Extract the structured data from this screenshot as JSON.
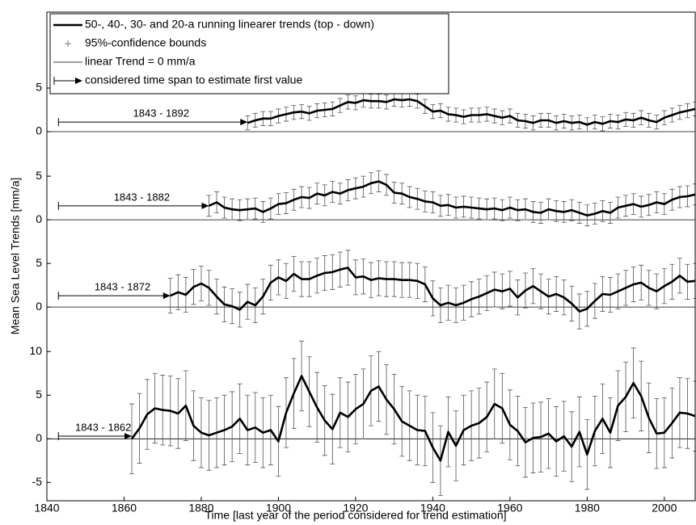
{
  "chart_data": [
    {
      "type": "line",
      "ylabel": "Mean Sea Level Trends [mm/a]",
      "legend": [
        "50-, 40-, 30- and 20-a running linearer trends (top - down)",
        "95%-confidence bounds",
        "linear Trend = 0 mm/a",
        "considered time span to estimate first value"
      ],
      "annotation": "1843 - 1892",
      "span_x": [
        1843,
        1892
      ],
      "span_y": 1.1,
      "color": "#000000",
      "error_color": "#555555",
      "error": 0.8,
      "ylim": [
        -2.5,
        13.7
      ],
      "yticks": [
        0,
        5
      ],
      "x": [
        1892,
        1894,
        1896,
        1898,
        1900,
        1902,
        1904,
        1906,
        1908,
        1910,
        1912,
        1914,
        1916,
        1918,
        1920,
        1922,
        1924,
        1926,
        1928,
        1930,
        1932,
        1934,
        1936,
        1938,
        1940,
        1942,
        1944,
        1946,
        1948,
        1950,
        1952,
        1954,
        1956,
        1958,
        1960,
        1962,
        1964,
        1966,
        1968,
        1970,
        1972,
        1974,
        1976,
        1978,
        1980,
        1982,
        1984,
        1986,
        1988,
        1990,
        1992,
        1994,
        1996,
        1998,
        2000,
        2002,
        2004,
        2006,
        2008
      ],
      "values": [
        1.0,
        1.3,
        1.5,
        1.5,
        1.8,
        2.0,
        2.2,
        2.3,
        2.1,
        2.4,
        2.5,
        2.6,
        3.0,
        3.4,
        3.3,
        3.6,
        3.5,
        3.5,
        3.4,
        3.7,
        3.6,
        3.7,
        3.5,
        2.9,
        2.3,
        2.4,
        2.0,
        1.9,
        1.7,
        1.9,
        1.9,
        2.0,
        1.8,
        1.6,
        1.8,
        1.3,
        1.2,
        1.0,
        1.3,
        1.3,
        1.0,
        1.2,
        1.0,
        1.1,
        0.8,
        1.1,
        0.9,
        1.2,
        1.1,
        1.4,
        1.3,
        1.6,
        1.3,
        1.1,
        1.6,
        1.9,
        2.2,
        2.4,
        2.6
      ]
    },
    {
      "type": "line",
      "annotation": "1843 - 1882",
      "span_x": [
        1843,
        1882
      ],
      "span_y": 1.6,
      "color": "#000000",
      "error_color": "#555555",
      "error": 1.2,
      "ylim": [
        -2.4,
        7.6
      ],
      "yticks": [
        0,
        5
      ],
      "x": [
        1882,
        1884,
        1886,
        1888,
        1890,
        1892,
        1894,
        1896,
        1898,
        1900,
        1902,
        1904,
        1906,
        1908,
        1910,
        1912,
        1914,
        1916,
        1918,
        1920,
        1922,
        1924,
        1926,
        1928,
        1930,
        1932,
        1934,
        1936,
        1938,
        1940,
        1942,
        1944,
        1946,
        1948,
        1950,
        1952,
        1954,
        1956,
        1958,
        1960,
        1962,
        1964,
        1966,
        1968,
        1970,
        1972,
        1974,
        1976,
        1978,
        1980,
        1982,
        1984,
        1986,
        1988,
        1990,
        1992,
        1994,
        1996,
        1998,
        2000,
        2002,
        2004,
        2006,
        2008
      ],
      "values": [
        1.6,
        2.0,
        1.4,
        1.2,
        1.1,
        1.2,
        1.3,
        0.9,
        1.3,
        1.8,
        1.9,
        2.3,
        2.6,
        2.5,
        3.0,
        2.8,
        3.2,
        3.0,
        3.4,
        3.6,
        3.8,
        4.2,
        4.4,
        4.0,
        3.1,
        3.0,
        2.6,
        2.4,
        2.1,
        2.0,
        1.6,
        1.7,
        1.4,
        1.5,
        1.4,
        1.3,
        1.2,
        1.3,
        1.1,
        1.4,
        1.1,
        1.2,
        0.9,
        0.8,
        1.2,
        1.0,
        0.9,
        1.1,
        0.8,
        0.5,
        0.7,
        1.0,
        0.8,
        1.4,
        1.6,
        1.8,
        1.5,
        1.7,
        2.0,
        1.8,
        2.3,
        2.6,
        2.7,
        2.9
      ]
    },
    {
      "type": "line",
      "annotation": "1843 - 1872",
      "span_x": [
        1843,
        1872
      ],
      "span_y": 1.3,
      "color": "#000000",
      "error_color": "#555555",
      "error": 2.0,
      "ylim": [
        -2.4,
        7.6
      ],
      "yticks": [
        0,
        5
      ],
      "x": [
        1872,
        1874,
        1876,
        1878,
        1880,
        1882,
        1884,
        1886,
        1888,
        1890,
        1892,
        1894,
        1896,
        1898,
        1900,
        1902,
        1904,
        1906,
        1908,
        1910,
        1912,
        1914,
        1916,
        1918,
        1920,
        1922,
        1924,
        1926,
        1928,
        1930,
        1932,
        1934,
        1936,
        1938,
        1940,
        1942,
        1944,
        1946,
        1948,
        1950,
        1952,
        1954,
        1956,
        1958,
        1960,
        1962,
        1964,
        1966,
        1968,
        1970,
        1972,
        1974,
        1976,
        1978,
        1980,
        1982,
        1984,
        1986,
        1988,
        1990,
        1992,
        1994,
        1996,
        1998,
        2000,
        2002,
        2004,
        2006,
        2008
      ],
      "values": [
        1.3,
        1.7,
        1.4,
        2.3,
        2.7,
        2.2,
        1.2,
        0.3,
        0.1,
        -0.3,
        0.6,
        0.2,
        1.2,
        2.8,
        3.4,
        3.0,
        3.8,
        3.2,
        3.2,
        3.6,
        3.9,
        4.0,
        4.3,
        4.5,
        3.4,
        3.5,
        3.1,
        3.3,
        3.2,
        3.2,
        3.1,
        3.1,
        3.0,
        2.6,
        1.0,
        0.2,
        0.5,
        0.2,
        0.5,
        0.9,
        1.2,
        1.6,
        2.0,
        1.8,
        2.1,
        1.1,
        1.9,
        2.4,
        1.8,
        1.2,
        1.5,
        1.1,
        0.4,
        -0.5,
        -0.2,
        0.7,
        1.5,
        1.4,
        1.8,
        2.2,
        2.6,
        2.8,
        2.2,
        1.8,
        2.4,
        2.9,
        3.6,
        2.9,
        3.0
      ]
    },
    {
      "type": "line",
      "annotation": "1843 - 1862",
      "span_x": [
        1843,
        1862
      ],
      "span_y": 0.3,
      "color": "#000000",
      "error_color": "#555555",
      "error": 4.0,
      "ylim": [
        -7.1,
        12.7
      ],
      "yticks": [
        -5,
        0,
        5,
        10
      ],
      "xlabel": "Time [last year of the period considered for trend estimation]",
      "xlim": [
        1840,
        2008
      ],
      "xticks": [
        1840,
        1860,
        1880,
        1900,
        1920,
        1940,
        1960,
        1980,
        2000
      ],
      "x": [
        1862,
        1864,
        1866,
        1868,
        1870,
        1872,
        1874,
        1876,
        1878,
        1880,
        1882,
        1884,
        1886,
        1888,
        1890,
        1892,
        1894,
        1896,
        1898,
        1900,
        1902,
        1904,
        1906,
        1908,
        1910,
        1912,
        1914,
        1916,
        1918,
        1920,
        1922,
        1924,
        1926,
        1928,
        1930,
        1932,
        1934,
        1936,
        1938,
        1940,
        1942,
        1944,
        1946,
        1948,
        1950,
        1952,
        1954,
        1956,
        1958,
        1960,
        1962,
        1964,
        1966,
        1968,
        1970,
        1972,
        1974,
        1976,
        1978,
        1980,
        1982,
        1984,
        1986,
        1988,
        1990,
        1992,
        1994,
        1996,
        1998,
        2000,
        2002,
        2004,
        2006,
        2008
      ],
      "values": [
        0.0,
        1.2,
        2.8,
        3.5,
        3.3,
        3.2,
        2.9,
        3.8,
        1.5,
        0.7,
        0.4,
        0.7,
        1.0,
        1.4,
        2.3,
        1.0,
        1.3,
        0.7,
        1.0,
        -0.3,
        3.0,
        5.2,
        7.2,
        5.4,
        3.6,
        2.1,
        1.1,
        3.0,
        2.5,
        3.4,
        4.0,
        5.5,
        6.0,
        4.5,
        3.4,
        2.0,
        1.5,
        1.0,
        0.9,
        -1.0,
        -2.5,
        0.8,
        -0.8,
        1.0,
        1.5,
        1.8,
        2.5,
        4.0,
        3.5,
        1.6,
        0.9,
        -0.4,
        0.1,
        0.2,
        0.6,
        -0.3,
        0.3,
        -0.9,
        0.8,
        -1.8,
        0.9,
        2.3,
        0.7,
        3.8,
        4.8,
        6.4,
        4.9,
        2.4,
        0.6,
        0.7,
        1.8,
        3.0,
        2.9,
        2.6
      ]
    }
  ]
}
